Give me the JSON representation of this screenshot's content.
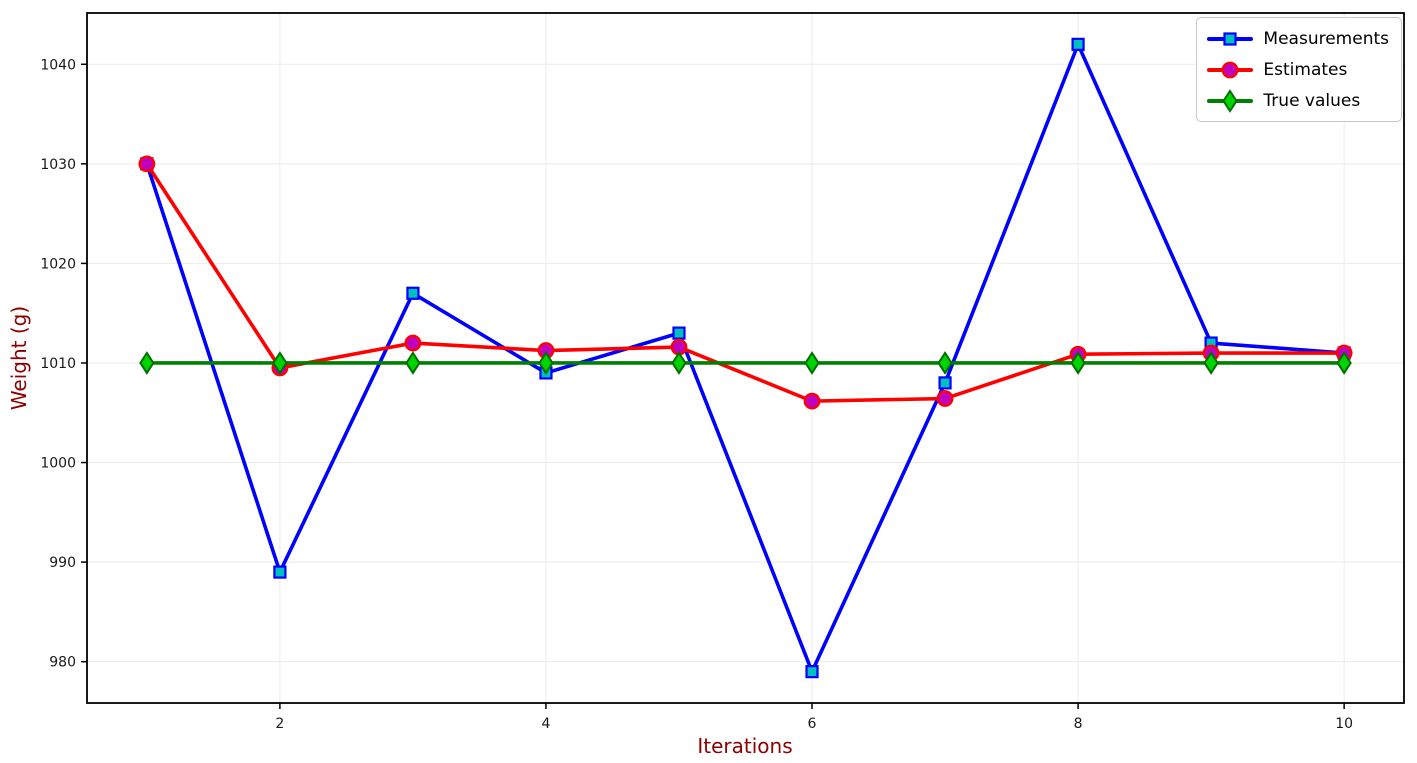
{
  "chart_data": {
    "type": "line",
    "title": "",
    "xlabel": "Iterations",
    "ylabel": "Weight (g)",
    "axis_label_color": "#8b0000",
    "tick_label_color": "#1a1a1a",
    "grid": true,
    "grid_color": "#ebebeb",
    "legend_position": "upper right",
    "x": [
      1,
      2,
      3,
      4,
      5,
      6,
      7,
      8,
      9,
      10
    ],
    "x_ticks": [
      2,
      4,
      6,
      8,
      10
    ],
    "y_ticks": [
      980,
      990,
      1000,
      1010,
      1020,
      1030,
      1040
    ],
    "xlim": [
      0.55,
      10.45
    ],
    "ylim": [
      975.85,
      1045.15
    ],
    "series": [
      {
        "name": "Measurements",
        "values": [
          1030,
          989,
          1017,
          1009,
          1013,
          979,
          1008,
          1042,
          1012,
          1011
        ],
        "line_color": "#0000ff",
        "marker": "square",
        "marker_fill": "#00bfbf",
        "marker_edge": "#0000ff"
      },
      {
        "name": "Estimates",
        "values": [
          1030,
          1009.5,
          1012,
          1011.25,
          1011.6,
          1006.17,
          1006.43,
          1010.88,
          1011,
          1011
        ],
        "line_color": "#ff0000",
        "marker": "circle",
        "marker_fill": "#bf00bf",
        "marker_edge": "#ff0000"
      },
      {
        "name": "True values",
        "values": [
          1010,
          1010,
          1010,
          1010,
          1010,
          1010,
          1010,
          1010,
          1010,
          1010
        ],
        "line_color": "#008000",
        "marker": "diamond",
        "marker_fill": "#00d400",
        "marker_edge": "#007000"
      }
    ]
  }
}
